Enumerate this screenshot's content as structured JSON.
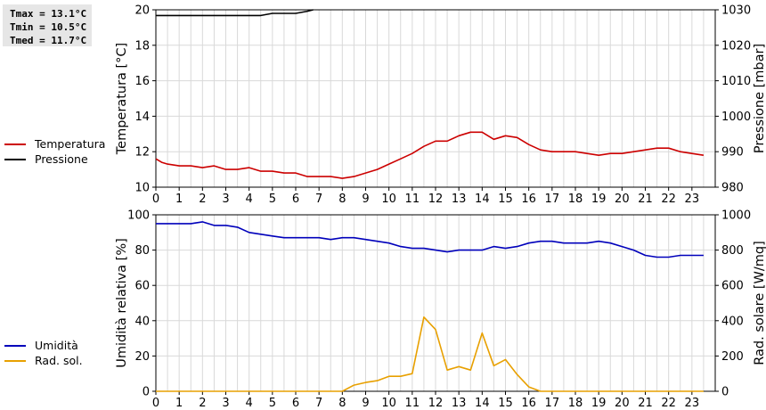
{
  "stats": {
    "tmax": "Tmax = 13.1°C",
    "tmin": "Tmin = 10.5°C",
    "tmed": "Tmed = 11.7°C"
  },
  "legend_top": [
    {
      "label": "Temperatura",
      "color": "#cc0000"
    },
    {
      "label": "Pressione",
      "color": "#000000"
    }
  ],
  "legend_bottom": [
    {
      "label": "Umidità",
      "color": "#0000bb"
    },
    {
      "label": "Rad. sol.",
      "color": "#e8a000"
    }
  ],
  "chart_data": [
    {
      "type": "line",
      "xlim": [
        0,
        24
      ],
      "xticks": [
        0,
        1,
        2,
        3,
        4,
        5,
        6,
        7,
        8,
        9,
        10,
        11,
        12,
        13,
        14,
        15,
        16,
        17,
        18,
        19,
        20,
        21,
        22,
        23
      ],
      "ylabel": "Temperatura [°C]",
      "ylim": [
        10,
        20
      ],
      "yticks": [
        10,
        12,
        14,
        16,
        18,
        20
      ],
      "y2label": "Pressione [mbar]",
      "y2lim": [
        980,
        1030
      ],
      "y2ticks": [
        980,
        990,
        1000,
        1010,
        1020,
        1030
      ],
      "grid": true,
      "series": [
        {
          "name": "Temperatura",
          "axis": "left",
          "color": "#cc0000",
          "x": [
            0,
            0.25,
            0.5,
            1,
            1.5,
            2,
            2.5,
            3,
            3.5,
            4,
            4.5,
            5,
            5.5,
            6,
            6.5,
            7,
            7.5,
            8,
            8.5,
            9,
            9.5,
            10,
            10.5,
            11,
            11.5,
            12,
            12.5,
            13,
            13.5,
            14,
            14.5,
            15,
            15.5,
            16,
            16.5,
            17,
            17.5,
            18,
            18.5,
            19,
            19.5,
            20,
            20.5,
            21,
            21.5,
            22,
            22.5,
            23,
            23.5
          ],
          "y": [
            11.6,
            11.4,
            11.3,
            11.2,
            11.2,
            11.1,
            11.2,
            11.0,
            11.0,
            11.1,
            10.9,
            10.9,
            10.8,
            10.8,
            10.6,
            10.6,
            10.6,
            10.5,
            10.6,
            10.8,
            11.0,
            11.3,
            11.6,
            11.9,
            12.3,
            12.6,
            12.6,
            12.9,
            13.1,
            13.1,
            12.7,
            12.9,
            12.8,
            12.4,
            12.1,
            12.0,
            12.0,
            12.0,
            11.9,
            11.8,
            11.9,
            11.9,
            12.0,
            12.1,
            12.2,
            12.2,
            12.0,
            11.9,
            11.8
          ]
        },
        {
          "name": "Pressione",
          "axis": "right",
          "color": "#000000",
          "x": [
            0,
            4.5,
            5.0,
            6.0,
            6.5,
            6.75
          ],
          "y": [
            1028.4,
            1028.4,
            1029.0,
            1029.0,
            1029.6,
            1030.0
          ]
        }
      ]
    },
    {
      "type": "line",
      "xlim": [
        0,
        24
      ],
      "xticks": [
        0,
        1,
        2,
        3,
        4,
        5,
        6,
        7,
        8,
        9,
        10,
        11,
        12,
        13,
        14,
        15,
        16,
        17,
        18,
        19,
        20,
        21,
        22,
        23
      ],
      "ylabel": "Umidità relativa [%]",
      "ylim": [
        0,
        100
      ],
      "yticks": [
        0,
        20,
        40,
        60,
        80,
        100
      ],
      "y2label": "Rad. solare [W/mq]",
      "y2lim": [
        0,
        1000
      ],
      "y2ticks": [
        0,
        200,
        400,
        600,
        800,
        1000
      ],
      "grid": true,
      "series": [
        {
          "name": "Umidità",
          "axis": "left",
          "color": "#0000bb",
          "x": [
            0,
            0.5,
            1,
            1.5,
            2,
            2.5,
            3,
            3.5,
            4,
            4.5,
            5,
            5.5,
            6,
            6.5,
            7,
            7.5,
            8,
            8.5,
            9,
            9.5,
            10,
            10.5,
            11,
            11.5,
            12,
            12.5,
            13,
            13.5,
            14,
            14.5,
            15,
            15.5,
            16,
            16.5,
            17,
            17.5,
            18,
            18.5,
            19,
            19.5,
            20,
            20.5,
            21,
            21.5,
            22,
            22.5,
            23,
            23.5
          ],
          "y": [
            95,
            95,
            95,
            95,
            96,
            94,
            94,
            93,
            90,
            89,
            88,
            87,
            87,
            87,
            87,
            86,
            87,
            87,
            86,
            85,
            84,
            82,
            81,
            81,
            80,
            79,
            80,
            80,
            80,
            82,
            81,
            82,
            84,
            85,
            85,
            84,
            84,
            84,
            85,
            84,
            82,
            80,
            77,
            76,
            76,
            77,
            77,
            77
          ]
        },
        {
          "name": "Rad. sol.",
          "axis": "right",
          "color": "#e8a000",
          "x": [
            0,
            8,
            8.5,
            9,
            9.5,
            10,
            10.5,
            11,
            11.5,
            12,
            12.5,
            13,
            13.5,
            14,
            14.5,
            15,
            15.5,
            16,
            16.5,
            23.5
          ],
          "y": [
            0,
            0,
            35,
            50,
            60,
            85,
            85,
            100,
            420,
            350,
            120,
            140,
            120,
            330,
            145,
            180,
            95,
            25,
            0,
            0
          ]
        }
      ]
    }
  ]
}
